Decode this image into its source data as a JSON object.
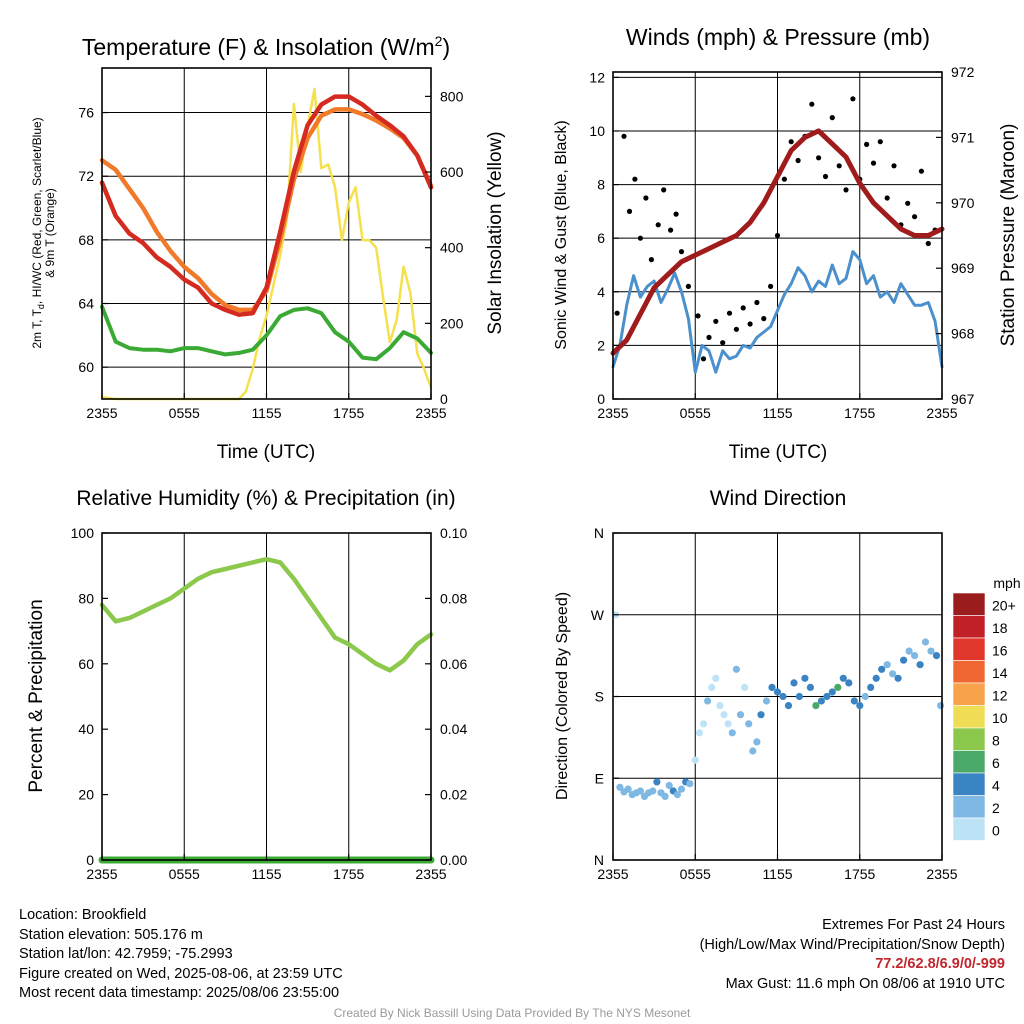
{
  "panels": {
    "temp": {
      "title": "Temperature (F) & Insolation (W/m",
      "title_sup": "2",
      "title_end": ")",
      "ylabel_left_1": "2m T, T",
      "ylabel_left_sub": "d",
      "ylabel_left_2": ", HI/WC (Red, Green, Scarlet/Blue)",
      "ylabel_left_3": "& 9m T (Orange)",
      "ylabel_right": "Solar Insolation (Yellow)",
      "xlabel": "Time (UTC)"
    },
    "winds": {
      "title": "Winds (mph) & Pressure (mb)",
      "ylabel_left": "Sonic Wind & Gust (Blue, Black)",
      "ylabel_right": "Station Pressure (Maroon)",
      "xlabel": "Time (UTC)"
    },
    "rh": {
      "title": "Relative Humidity (%) & Precipitation (in)",
      "ylabel_left": "Percent & Precipitation"
    },
    "wdir": {
      "title": "Wind Direction",
      "ylabel_left": "Direction (Colored By Speed)",
      "legend_unit": "mph"
    }
  },
  "info_left": {
    "location": "Location: Brookfield",
    "elevation": "Station elevation: 505.176 m",
    "latlon": "Station lat/lon: 42.7959; -75.2993",
    "created": "Figure created on Wed, 2025-08-06, at 23:59 UTC",
    "recent": "Most recent data timestamp: 2025/08/06 23:55:00"
  },
  "info_right": {
    "line1": "Extremes For Past 24 Hours",
    "line2": "(High/Low/Max Wind/Precipitation/Snow Depth)",
    "extremes": "77.2/62.8/6.9/0/-999",
    "gust": "Max Gust: 11.6 mph On 08/06 at 1910 UTC"
  },
  "credit": "Created By Nick Bassill Using Data Provided By The NYS Mesonet",
  "colors": {
    "temp_red": "#d42a20",
    "temp_orange": "#f07a2a",
    "dewpoint_green": "#3aaa35",
    "insolation_yellow": "#f5e04e",
    "wind_blue": "#4a90cc",
    "gust_black": "#000000",
    "pressure_maroon": "#a01c1c",
    "rh_green": "#8cc84b",
    "precip_green": "#3aaa35",
    "extremes_red": "#c0272d"
  },
  "chart_data": [
    {
      "id": "temp",
      "type": "line",
      "xticks": [
        "2355",
        "0555",
        "1155",
        "1755",
        "2355"
      ],
      "y_left_ticks": [
        60,
        64,
        68,
        72,
        76
      ],
      "ylim_left": [
        58,
        78.8
      ],
      "y_right_ticks": [
        0,
        200,
        400,
        600,
        800
      ],
      "ylim_right": [
        0,
        875
      ],
      "x_hours_range": [
        0,
        24
      ],
      "series": [
        {
          "key": "temp_red",
          "axis": "left",
          "x": [
            0,
            1,
            2,
            3,
            4,
            5,
            6,
            7,
            8,
            9,
            10,
            11,
            12,
            13,
            14,
            15,
            16,
            17,
            18,
            19,
            20,
            21,
            22,
            23,
            24
          ],
          "values": [
            71.6,
            69.5,
            68.4,
            67.8,
            66.9,
            66.3,
            65.5,
            65.0,
            64.0,
            63.6,
            63.3,
            63.4,
            65.0,
            68.5,
            72.3,
            75.2,
            76.5,
            77.0,
            77.0,
            76.5,
            75.8,
            75.2,
            74.5,
            73.3,
            71.3
          ]
        },
        {
          "key": "temp_orange",
          "axis": "left",
          "x": [
            0,
            1,
            2,
            3,
            4,
            5,
            6,
            7,
            8,
            9,
            10,
            11,
            12,
            13,
            14,
            15,
            16,
            17,
            18,
            19,
            20,
            21,
            22,
            23,
            24
          ],
          "values": [
            73.0,
            72.4,
            71.2,
            70.0,
            68.5,
            67.3,
            66.3,
            65.6,
            64.6,
            63.9,
            63.6,
            63.6,
            64.8,
            68.0,
            71.8,
            74.4,
            75.8,
            76.2,
            76.2,
            75.9,
            75.5,
            75.0,
            74.4,
            73.3,
            71.4
          ]
        },
        {
          "key": "dewpoint_green",
          "axis": "left",
          "x": [
            0,
            1,
            2,
            3,
            4,
            5,
            6,
            7,
            8,
            9,
            10,
            11,
            12,
            13,
            14,
            15,
            16,
            17,
            18,
            19,
            20,
            21,
            22,
            23,
            24
          ],
          "values": [
            63.8,
            61.6,
            61.2,
            61.1,
            61.1,
            61.0,
            61.2,
            61.2,
            61.0,
            60.8,
            60.9,
            61.1,
            62.0,
            63.2,
            63.6,
            63.7,
            63.4,
            62.2,
            61.6,
            60.6,
            60.5,
            61.2,
            62.2,
            61.8,
            60.9
          ]
        },
        {
          "key": "insolation_yellow",
          "axis": "right",
          "x": [
            0,
            1,
            2,
            3,
            4,
            5,
            6,
            7,
            8,
            9,
            10,
            10.5,
            11,
            11.5,
            12,
            12.5,
            13,
            13.5,
            14,
            14.5,
            15,
            15.5,
            16,
            16.5,
            17,
            17.5,
            18,
            18.5,
            19,
            19.5,
            20,
            20.5,
            21,
            21.5,
            22,
            22.5,
            23,
            23.5,
            24
          ],
          "values": [
            5,
            0,
            0,
            0,
            0,
            0,
            0,
            0,
            0,
            0,
            0,
            20,
            80,
            160,
            220,
            300,
            380,
            480,
            780,
            600,
            720,
            820,
            610,
            620,
            560,
            420,
            520,
            560,
            420,
            420,
            400,
            270,
            150,
            210,
            350,
            280,
            120,
            80,
            30
          ]
        }
      ]
    },
    {
      "id": "winds",
      "type": "line",
      "xticks": [
        "2355",
        "0555",
        "1155",
        "1755",
        "2355"
      ],
      "y_left_ticks": [
        0,
        2,
        4,
        6,
        8,
        10,
        12
      ],
      "ylim_left": [
        0,
        12.2
      ],
      "y_right_ticks": [
        967,
        968,
        969,
        970,
        971,
        972
      ],
      "ylim_right": [
        967,
        972
      ],
      "series": [
        {
          "key": "pressure_maroon",
          "axis": "right",
          "x": [
            0,
            1,
            2,
            3,
            4,
            5,
            6,
            7,
            8,
            9,
            10,
            11,
            12,
            13,
            14,
            15,
            16,
            17,
            18,
            19,
            20,
            21,
            22,
            23,
            24
          ],
          "values": [
            967.7,
            967.9,
            968.3,
            968.7,
            968.9,
            969.1,
            969.2,
            969.3,
            969.4,
            969.5,
            969.7,
            970.0,
            970.4,
            970.8,
            971.0,
            971.1,
            970.9,
            970.7,
            970.3,
            970.0,
            969.8,
            969.6,
            969.5,
            969.5,
            969.6
          ]
        },
        {
          "key": "wind_blue",
          "axis": "left",
          "x": [
            0,
            0.5,
            1,
            1.5,
            2,
            2.5,
            3,
            3.5,
            4,
            4.5,
            5,
            5.5,
            6,
            6.5,
            7,
            7.5,
            8,
            8.5,
            9,
            9.5,
            10,
            10.5,
            11,
            11.5,
            12,
            12.5,
            13,
            13.5,
            14,
            14.5,
            15,
            15.5,
            16,
            16.5,
            17,
            17.5,
            18,
            18.5,
            19,
            19.5,
            20,
            20.5,
            21,
            21.5,
            22,
            22.5,
            23,
            23.5,
            24
          ],
          "values": [
            1.2,
            2.0,
            3.5,
            4.6,
            3.8,
            4.2,
            4.4,
            3.6,
            4.1,
            4.7,
            4.0,
            3.0,
            1.0,
            2.0,
            1.8,
            1.0,
            1.8,
            1.5,
            1.6,
            2.0,
            1.9,
            2.3,
            2.5,
            2.7,
            3.3,
            3.9,
            4.3,
            4.9,
            4.6,
            4.0,
            4.4,
            4.2,
            5.0,
            4.3,
            4.5,
            5.5,
            5.2,
            4.3,
            4.6,
            3.8,
            4.0,
            3.6,
            4.3,
            3.9,
            3.5,
            3.5,
            3.6,
            2.9,
            1.2
          ]
        },
        {
          "key": "gust_black",
          "axis": "left",
          "type": "scatter",
          "x": [
            0.3,
            0.8,
            1.2,
            1.6,
            2.0,
            2.4,
            2.8,
            3.3,
            3.7,
            4.2,
            4.6,
            5.0,
            5.5,
            6.2,
            6.6,
            7.0,
            7.5,
            8.0,
            8.5,
            9.0,
            9.5,
            10.0,
            10.5,
            11.0,
            11.5,
            12.0,
            12.5,
            13.0,
            13.5,
            14.0,
            14.5,
            15.0,
            15.5,
            16.0,
            16.5,
            17.0,
            17.5,
            18.0,
            18.5,
            19.0,
            19.5,
            20.0,
            20.5,
            21.0,
            21.5,
            22.0,
            22.5,
            23.0,
            23.5
          ],
          "values": [
            3.2,
            9.8,
            7.0,
            8.2,
            6.0,
            7.5,
            5.2,
            6.5,
            7.8,
            6.3,
            6.9,
            5.5,
            4.2,
            3.1,
            1.5,
            2.3,
            2.9,
            2.1,
            3.2,
            2.6,
            3.4,
            2.8,
            3.6,
            3.0,
            4.2,
            6.1,
            8.2,
            9.6,
            8.9,
            9.8,
            11.0,
            9.0,
            8.3,
            10.5,
            8.7,
            7.8,
            11.2,
            8.2,
            9.5,
            8.8,
            9.6,
            7.5,
            8.7,
            6.5,
            7.3,
            6.8,
            8.5,
            5.8,
            6.3
          ]
        }
      ]
    },
    {
      "id": "rh",
      "type": "line",
      "xticks": [
        "2355",
        "0555",
        "1155",
        "1755",
        "2355"
      ],
      "y_left_ticks": [
        0,
        20,
        40,
        60,
        80,
        100
      ],
      "ylim_left": [
        0,
        100
      ],
      "y_right_ticks": [
        "0.00",
        "0.02",
        "0.04",
        "0.06",
        "0.08",
        "0.10"
      ],
      "ylim_right": [
        0,
        0.1
      ],
      "series": [
        {
          "key": "rh_green",
          "axis": "left",
          "x": [
            0,
            1,
            2,
            3,
            4,
            5,
            6,
            7,
            8,
            9,
            10,
            11,
            12,
            13,
            14,
            15,
            16,
            17,
            18,
            19,
            20,
            21,
            22,
            23,
            24
          ],
          "values": [
            78,
            73,
            74,
            76,
            78,
            80,
            83,
            86,
            88,
            89,
            90,
            91,
            92,
            91,
            86,
            80,
            74,
            68,
            66,
            63,
            60,
            58,
            61,
            66,
            69
          ]
        },
        {
          "key": "precip_green",
          "axis": "right",
          "x": [
            0,
            24
          ],
          "values": [
            0,
            0
          ]
        }
      ]
    },
    {
      "id": "wdir",
      "type": "scatter",
      "xticks": [
        "2355",
        "0555",
        "1155",
        "1755",
        "2355"
      ],
      "y_ticks": [
        "N",
        "E",
        "S",
        "W",
        "N"
      ],
      "ylim": [
        0,
        360
      ],
      "legend_levels": [
        "20+",
        "18",
        "16",
        "14",
        "12",
        "10",
        "8",
        "6",
        "4",
        "2",
        "0"
      ],
      "legend_colors": [
        "#9b1c1c",
        "#c12126",
        "#e0362c",
        "#f06732",
        "#f8a24b",
        "#eedd55",
        "#8cc84b",
        "#4aa869",
        "#3b84c4",
        "#7eb8e3",
        "#bfe3f6"
      ],
      "x": [
        0.2,
        0.5,
        0.8,
        1.1,
        1.4,
        1.7,
        2.0,
        2.3,
        2.6,
        2.9,
        3.2,
        3.5,
        3.8,
        4.1,
        4.4,
        4.7,
        5.0,
        5.3,
        5.6,
        6.0,
        6.3,
        6.6,
        6.9,
        7.2,
        7.5,
        7.8,
        8.1,
        8.4,
        8.7,
        9.0,
        9.3,
        9.6,
        9.9,
        10.2,
        10.5,
        10.8,
        11.2,
        11.6,
        12.0,
        12.4,
        12.8,
        13.2,
        13.6,
        14.0,
        14.4,
        14.8,
        15.2,
        15.6,
        16.0,
        16.4,
        16.8,
        17.2,
        17.6,
        18.0,
        18.4,
        18.8,
        19.2,
        19.6,
        20.0,
        20.4,
        20.8,
        21.2,
        21.6,
        22.0,
        22.4,
        22.8,
        23.2,
        23.6,
        23.9
      ],
      "values": [
        270,
        80,
        75,
        78,
        72,
        74,
        76,
        70,
        74,
        76,
        86,
        74,
        70,
        82,
        76,
        72,
        78,
        86,
        84,
        110,
        140,
        150,
        175,
        190,
        200,
        170,
        160,
        150,
        140,
        210,
        160,
        190,
        150,
        120,
        130,
        160,
        175,
        190,
        185,
        180,
        170,
        195,
        180,
        200,
        190,
        170,
        175,
        180,
        185,
        190,
        200,
        195,
        175,
        170,
        180,
        190,
        200,
        210,
        215,
        205,
        200,
        220,
        230,
        225,
        215,
        240,
        230,
        225,
        170
      ],
      "speeds": [
        1,
        3,
        3,
        3,
        3,
        3,
        3,
        3,
        3,
        3,
        4,
        3,
        3,
        3,
        4,
        3,
        3,
        4,
        3,
        1,
        1,
        1,
        2,
        1,
        1,
        1,
        1,
        1,
        2,
        3,
        2,
        1,
        2,
        2,
        2,
        4,
        3,
        4,
        4,
        4,
        4,
        4,
        4,
        4,
        5,
        6,
        4,
        4,
        4,
        6,
        4,
        4,
        4,
        4,
        3,
        4,
        4,
        4,
        3,
        3,
        4,
        4,
        3,
        3,
        4,
        3,
        3,
        4,
        2
      ]
    }
  ]
}
